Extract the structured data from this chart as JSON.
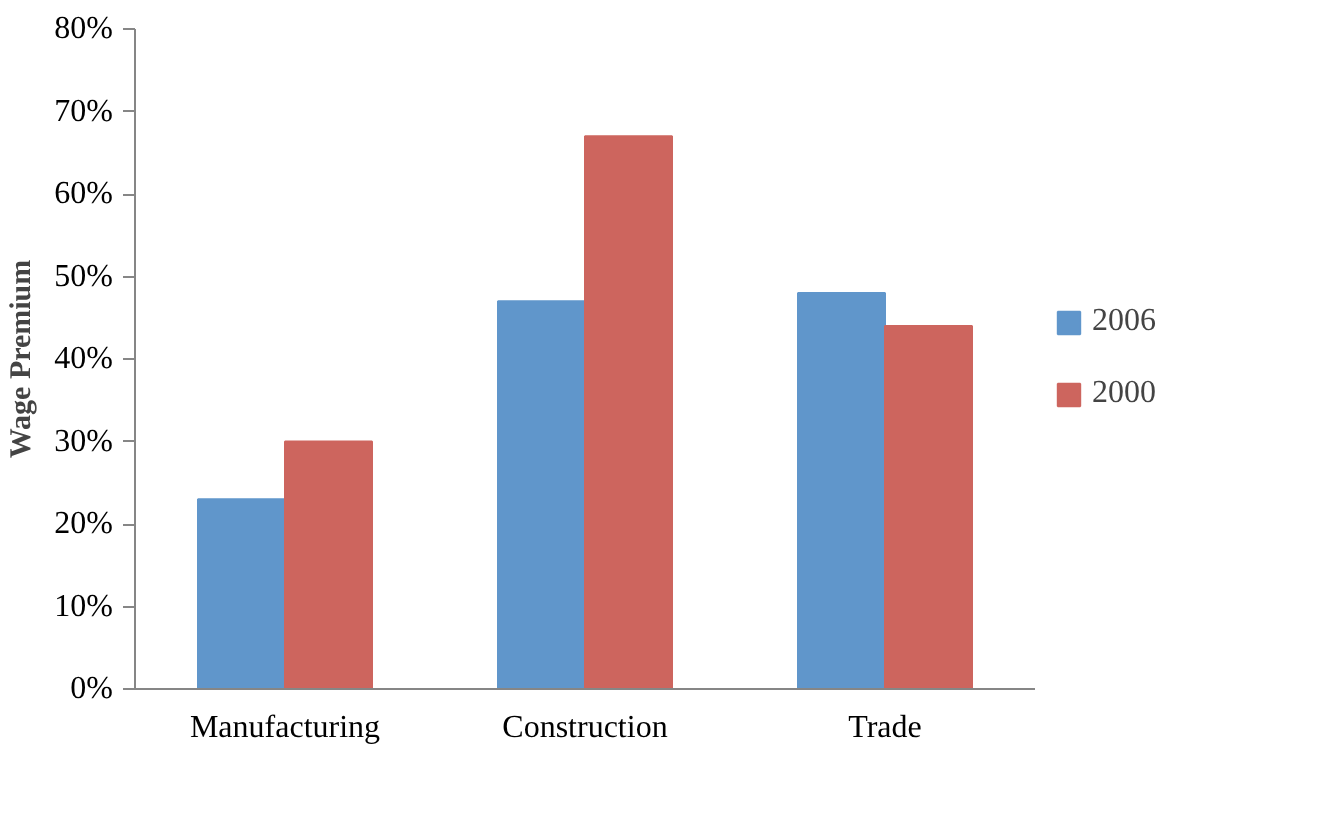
{
  "chart_data": {
    "type": "bar",
    "ylabel": "Wage Premium",
    "categories": [
      "Manufacturing",
      "Construction",
      "Trade"
    ],
    "series": [
      {
        "name": "2006",
        "color": "#6096cb",
        "values": [
          23,
          47,
          48
        ]
      },
      {
        "name": "2000",
        "color": "#cd655e",
        "values": [
          30,
          67,
          44
        ]
      }
    ],
    "ylim": [
      0,
      80
    ],
    "yticks": [
      {
        "value": 0,
        "label": "0%"
      },
      {
        "value": 10,
        "label": "10%"
      },
      {
        "value": 20,
        "label": "20%"
      },
      {
        "value": 30,
        "label": "30%"
      },
      {
        "value": 40,
        "label": "40%"
      },
      {
        "value": 50,
        "label": "50%"
      },
      {
        "value": 60,
        "label": "60%"
      },
      {
        "value": 70,
        "label": "70%"
      },
      {
        "value": 80,
        "label": "80%"
      }
    ],
    "grid": false,
    "legend": "right"
  }
}
